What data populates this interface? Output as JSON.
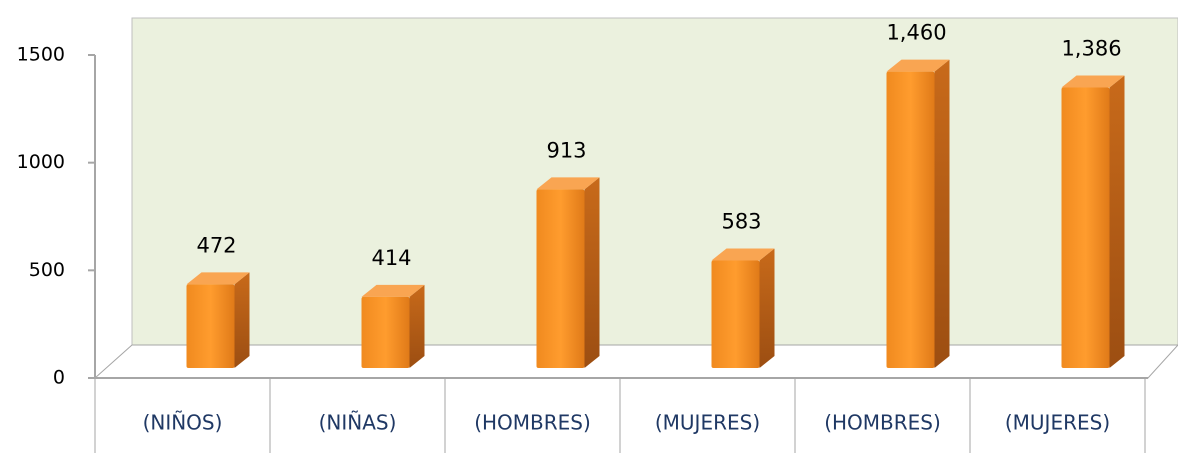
{
  "chart_data": {
    "type": "bar",
    "categories": [
      "(NIÑOS)",
      "(NIÑAS)",
      "(HOMBRES)",
      "(MUJERES)",
      "(HOMBRES)",
      "(MUJERES)"
    ],
    "values": [
      472,
      414,
      913,
      583,
      1460,
      1386
    ],
    "value_labels": [
      "472",
      "414",
      "913",
      "583",
      "1,460",
      "1,386"
    ],
    "color": "#f7941d",
    "ylim": [
      0,
      1500
    ],
    "yticks": [
      0,
      500,
      1000,
      1500
    ]
  }
}
